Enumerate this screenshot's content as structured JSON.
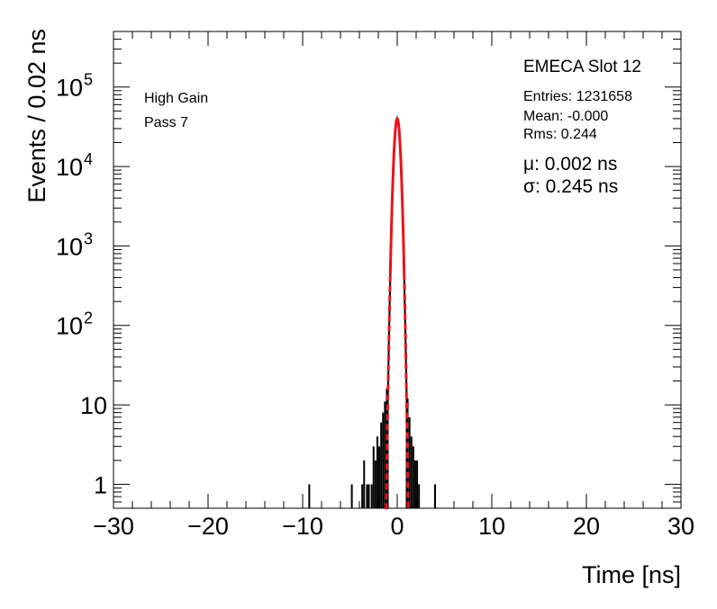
{
  "chart_data": {
    "type": "histogram",
    "title": "EMECA Slot 12",
    "xlabel": "Time [ns]",
    "ylabel": "Events / 0.02 ns",
    "xlim": [
      -30,
      30
    ],
    "ylim": [
      0.5,
      500000
    ],
    "yscale": "log",
    "bin_width_ns": 0.02,
    "x_ticks": [
      -30,
      -20,
      -10,
      0,
      10,
      20,
      30
    ],
    "x_tick_labels": [
      "−30",
      "−20",
      "−10",
      "0",
      "10",
      "20",
      "30"
    ],
    "y_ticks": [
      {
        "value": 1,
        "label": "1",
        "exp": ""
      },
      {
        "value": 10,
        "label": "10",
        "exp": ""
      },
      {
        "value": 100,
        "label": "10",
        "exp": "2"
      },
      {
        "value": 1000,
        "label": "10",
        "exp": "3"
      },
      {
        "value": 10000,
        "label": "10",
        "exp": "4"
      },
      {
        "value": 100000,
        "label": "10",
        "exp": "5"
      }
    ],
    "annotations": [
      "High Gain",
      "Pass 7"
    ],
    "stats": {
      "entries": "Entries: 1231658",
      "mean": "Mean: -0.000",
      "rms": "Rms: 0.244"
    },
    "fit": {
      "mu_label": "μ: 0.002 ns",
      "sigma_label": "σ: 0.245 ns",
      "mu": 0.002,
      "sigma": 0.245,
      "peak": 40000,
      "color": "#e8141a",
      "dashed_extension_to_ns": 1.3
    },
    "histogram": {
      "color": "#000000",
      "core_points": [
        [
          -1.0,
          10
        ],
        [
          -0.9,
          50
        ],
        [
          -0.8,
          180
        ],
        [
          -0.7,
          600
        ],
        [
          -0.6,
          1700
        ],
        [
          -0.5,
          4200
        ],
        [
          -0.4,
          9000
        ],
        [
          -0.3,
          17000
        ],
        [
          -0.2,
          27000
        ],
        [
          -0.1,
          36000
        ],
        [
          0.0,
          40000
        ],
        [
          0.1,
          36000
        ],
        [
          0.2,
          27000
        ],
        [
          0.3,
          17000
        ],
        [
          0.4,
          9000
        ],
        [
          0.5,
          4200
        ],
        [
          0.6,
          1700
        ],
        [
          0.7,
          600
        ],
        [
          0.8,
          180
        ],
        [
          0.9,
          50
        ],
        [
          1.0,
          12
        ]
      ],
      "tail_bins": [
        [
          -9.3,
          1
        ],
        [
          -4.8,
          1
        ],
        [
          -3.7,
          1
        ],
        [
          -3.5,
          2
        ],
        [
          -3.2,
          1
        ],
        [
          -3.0,
          1
        ],
        [
          -2.7,
          1
        ],
        [
          -2.5,
          3
        ],
        [
          -2.3,
          2
        ],
        [
          -2.1,
          4
        ],
        [
          -1.9,
          3
        ],
        [
          -1.7,
          6
        ],
        [
          -1.5,
          8
        ],
        [
          -1.3,
          11
        ],
        [
          -1.1,
          16
        ],
        [
          1.1,
          12
        ],
        [
          1.3,
          7
        ],
        [
          1.5,
          4
        ],
        [
          1.7,
          3
        ],
        [
          1.9,
          2
        ],
        [
          2.1,
          2
        ],
        [
          2.3,
          1
        ],
        [
          4.0,
          1
        ]
      ]
    }
  }
}
